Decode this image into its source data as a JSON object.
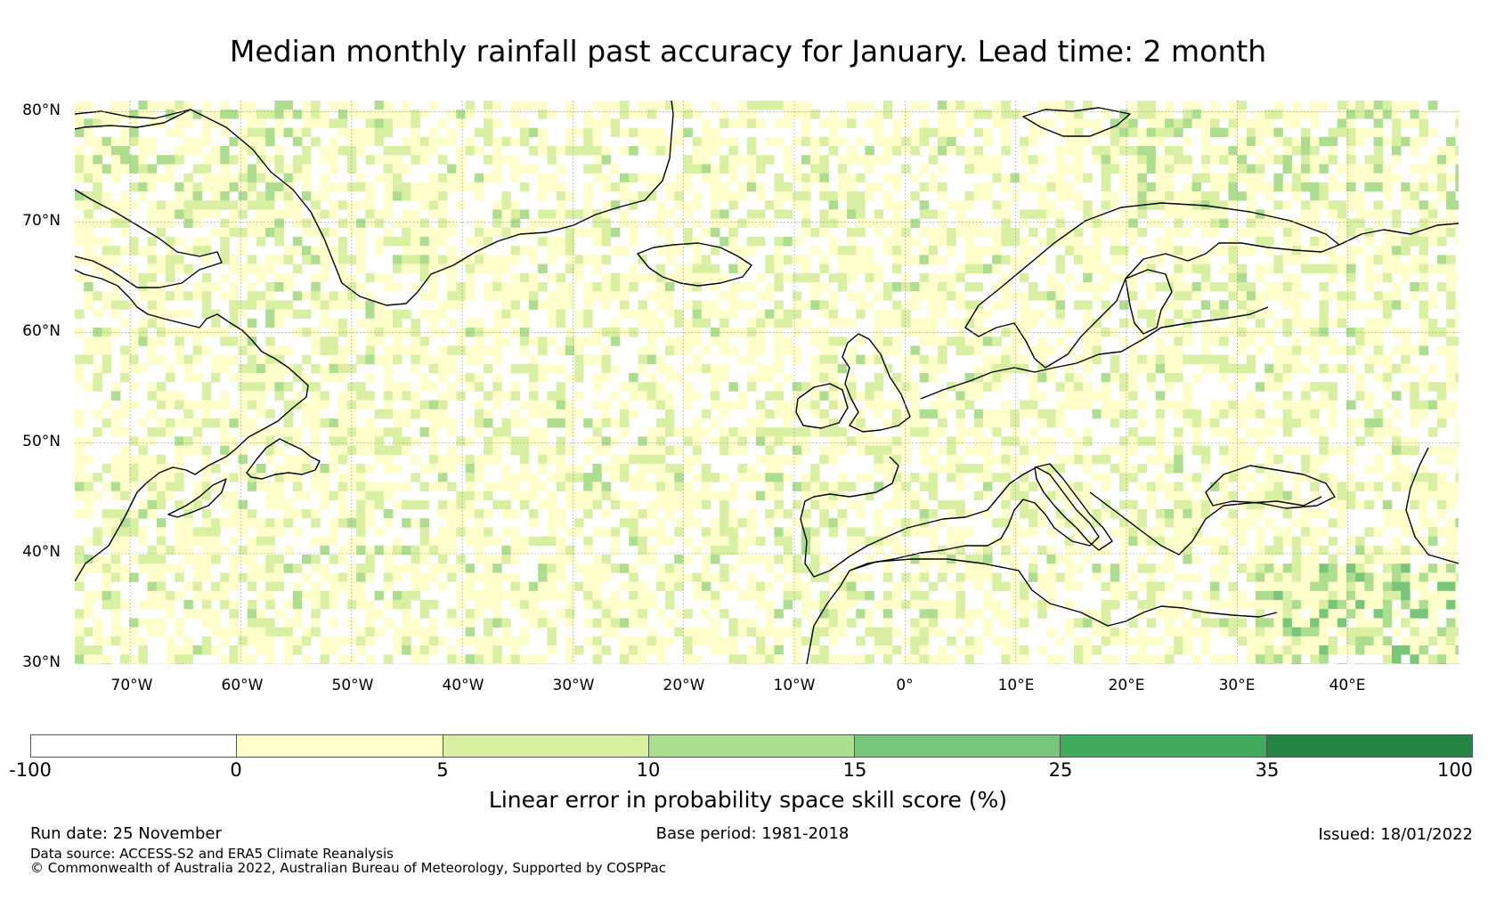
{
  "title": "Median monthly rainfall past accuracy for January. Lead time: 2 month",
  "map": {
    "lat_labels": [
      "80°N",
      "70°N",
      "60°N",
      "50°N",
      "40°N",
      "30°N"
    ],
    "lon_labels": [
      "70°W",
      "60°W",
      "50°W",
      "40°W",
      "30°W",
      "20°W",
      "10°W",
      "0°",
      "10°E",
      "20°E",
      "30°E",
      "40°E"
    ],
    "extent": {
      "lon_min": -75,
      "lon_max": 50,
      "lat_min": 30,
      "lat_max": 81
    },
    "land_outline_color": "#000000",
    "gridline_color": "#999999"
  },
  "colorbar": {
    "ticks": [
      "-100",
      "0",
      "5",
      "10",
      "15",
      "25",
      "35",
      "100"
    ],
    "colors": [
      "#ffffff",
      "#ffffcc",
      "#d9f0a3",
      "#addd8e",
      "#78c679",
      "#41ab5d",
      "#238443"
    ],
    "label": "Linear error in probability space skill score (%)"
  },
  "footer": {
    "run_date": "Run date: 25 November",
    "base_period": "Base period: 1981-2018",
    "issued": "Issued: 18/01/2022",
    "data_source": "Data source: ACCESS-S2 and ERA5 Climate Reanalysis",
    "copyright": "© Commonwealth of Australia 2022, Australian Bureau of Meteorology, Supported by COSPPac"
  }
}
